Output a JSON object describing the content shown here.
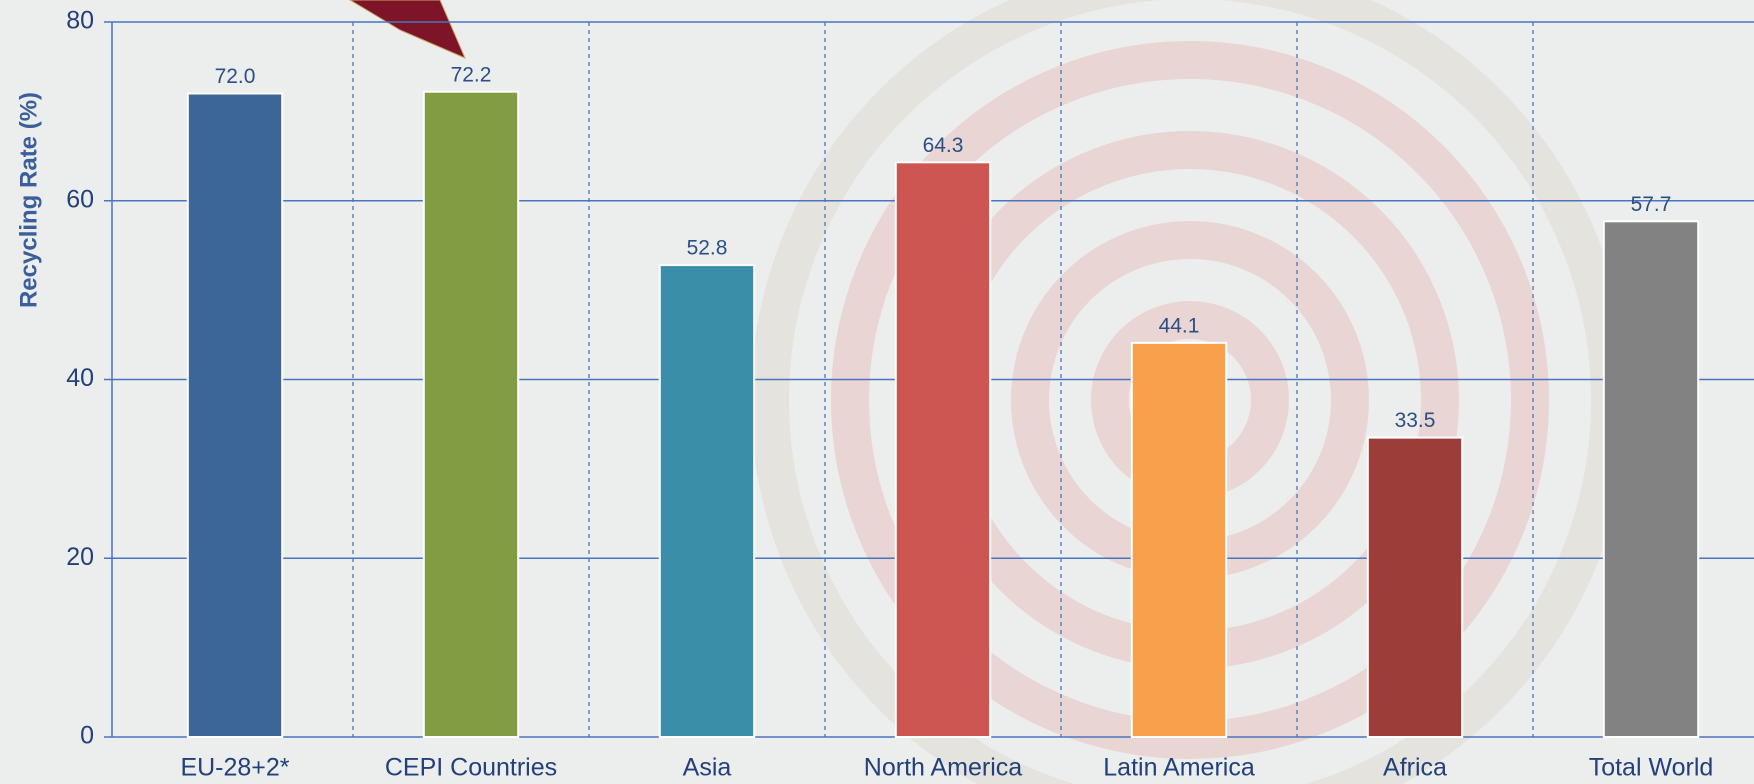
{
  "chart_data": {
    "type": "bar",
    "y_label": "Recycling Rate (%)",
    "categories": [
      "EU-28+2*",
      "CEPI Countries",
      "Asia",
      "North America",
      "Latin America",
      "Africa",
      "Total World"
    ],
    "values": [
      72.0,
      72.2,
      52.8,
      64.3,
      44.1,
      33.5,
      57.7
    ],
    "value_labels": [
      "72.0",
      "72.2",
      "52.8",
      "64.3",
      "44.1",
      "33.5",
      "57.7"
    ],
    "colors": [
      "#3c6698",
      "#829c42",
      "#3a8ea8",
      "#cd5652",
      "#f9a04c",
      "#9d3d3a",
      "#828282"
    ],
    "ylim": [
      0,
      80
    ],
    "yticks": [
      0,
      20,
      40,
      60,
      80
    ],
    "grid": true
  }
}
